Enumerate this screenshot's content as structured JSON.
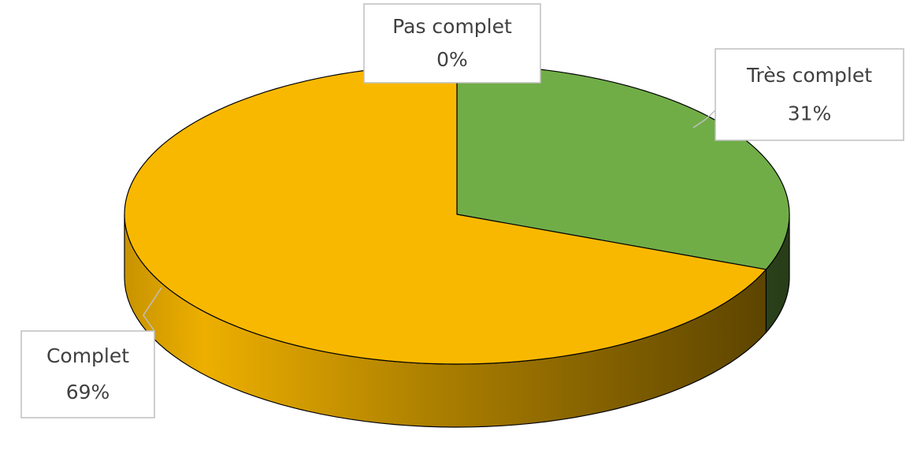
{
  "chart_data": {
    "type": "pie3d",
    "categories": [
      "Pas complet",
      "Très complet",
      "Complet"
    ],
    "values": [
      0,
      31,
      69
    ],
    "value_labels": [
      "0%",
      "31%",
      "69%"
    ],
    "colors": [
      "#5b9bd5",
      "#70ad47",
      "#f9b800"
    ]
  }
}
